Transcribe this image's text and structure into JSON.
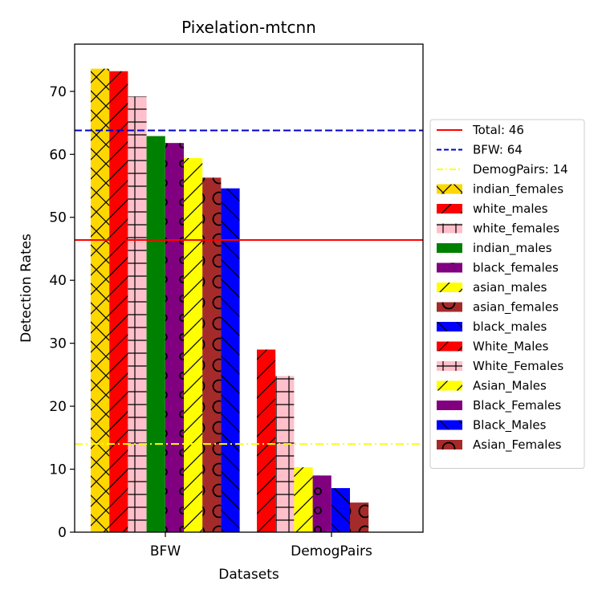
{
  "chart_data": {
    "type": "bar",
    "title": "Pixelation-mtcnn",
    "xlabel": "Datasets",
    "ylabel": "Detection Rates",
    "ylim": [
      0,
      77.5
    ],
    "yticks": [
      0,
      10,
      20,
      30,
      40,
      50,
      60,
      70
    ],
    "categories": [
      "BFW",
      "DemogPairs"
    ],
    "grid": false,
    "legend_position": "right, outside plot",
    "groups": [
      {
        "category": "BFW",
        "bars": [
          {
            "name": "indian_females",
            "value": 73.6,
            "color": "#ffd700",
            "hatch": "x"
          },
          {
            "name": "white_males",
            "value": 73.2,
            "color": "#ff0000",
            "hatch": "/"
          },
          {
            "name": "white_females",
            "value": 69.2,
            "color": "#ffc0cb",
            "hatch": "+"
          },
          {
            "name": "indian_males",
            "value": 62.9,
            "color": "#008000",
            "hatch": "none"
          },
          {
            "name": "black_females",
            "value": 61.8,
            "color": "#800080",
            "hatch": "o"
          },
          {
            "name": "asian_males",
            "value": 59.4,
            "color": "#ffff00",
            "hatch": "/"
          },
          {
            "name": "asian_females",
            "value": 56.3,
            "color": "#a52a2a",
            "hatch": "O"
          },
          {
            "name": "black_males",
            "value": 54.6,
            "color": "#0000ff",
            "hatch": "\\"
          }
        ]
      },
      {
        "category": "DemogPairs",
        "bars": [
          {
            "name": "White_Males",
            "value": 29.0,
            "color": "#ff0000",
            "hatch": "/"
          },
          {
            "name": "White_Females",
            "value": 24.8,
            "color": "#ffc0cb",
            "hatch": "+"
          },
          {
            "name": "Asian_Males",
            "value": 10.3,
            "color": "#ffff00",
            "hatch": "/"
          },
          {
            "name": "Black_Females",
            "value": 9.0,
            "color": "#800080",
            "hatch": "o"
          },
          {
            "name": "Black_Males",
            "value": 7.0,
            "color": "#0000ff",
            "hatch": "\\"
          },
          {
            "name": "Asian_Females",
            "value": 4.7,
            "color": "#a52a2a",
            "hatch": "O"
          }
        ]
      }
    ],
    "reference_lines": [
      {
        "label": "Total: 46",
        "value": 46.4,
        "color": "#ff0000",
        "style": "solid"
      },
      {
        "label": "BFW: 64",
        "value": 63.8,
        "color": "#0000cd",
        "style": "dashed"
      },
      {
        "label": "DemogPairs: 14",
        "value": 14.0,
        "color": "#ffff00",
        "style": "dashdot"
      }
    ],
    "legend": [
      {
        "label": "Total: 46",
        "kind": "line",
        "color": "#ff0000",
        "style": "solid"
      },
      {
        "label": "BFW: 64",
        "kind": "line",
        "color": "#0000cd",
        "style": "dashed"
      },
      {
        "label": "DemogPairs: 14",
        "kind": "line",
        "color": "#ffff00",
        "style": "dashdot"
      },
      {
        "label": "indian_females",
        "kind": "patch",
        "color": "#ffd700",
        "hatch": "x"
      },
      {
        "label": "white_males",
        "kind": "patch",
        "color": "#ff0000",
        "hatch": "/"
      },
      {
        "label": "white_females",
        "kind": "patch",
        "color": "#ffc0cb",
        "hatch": "+"
      },
      {
        "label": "indian_males",
        "kind": "patch",
        "color": "#008000",
        "hatch": "none"
      },
      {
        "label": "black_females",
        "kind": "patch",
        "color": "#800080",
        "hatch": "o"
      },
      {
        "label": "asian_males",
        "kind": "patch",
        "color": "#ffff00",
        "hatch": "/"
      },
      {
        "label": "asian_females",
        "kind": "patch",
        "color": "#a52a2a",
        "hatch": "O"
      },
      {
        "label": "black_males",
        "kind": "patch",
        "color": "#0000ff",
        "hatch": "\\"
      },
      {
        "label": "White_Males",
        "kind": "patch",
        "color": "#ff0000",
        "hatch": "/"
      },
      {
        "label": "White_Females",
        "kind": "patch",
        "color": "#ffc0cb",
        "hatch": "+"
      },
      {
        "label": "Asian_Males",
        "kind": "patch",
        "color": "#ffff00",
        "hatch": "/"
      },
      {
        "label": "Black_Females",
        "kind": "patch",
        "color": "#800080",
        "hatch": "o"
      },
      {
        "label": "Black_Males",
        "kind": "patch",
        "color": "#0000ff",
        "hatch": "\\"
      },
      {
        "label": "Asian_Females",
        "kind": "patch",
        "color": "#a52a2a",
        "hatch": "O"
      }
    ]
  }
}
